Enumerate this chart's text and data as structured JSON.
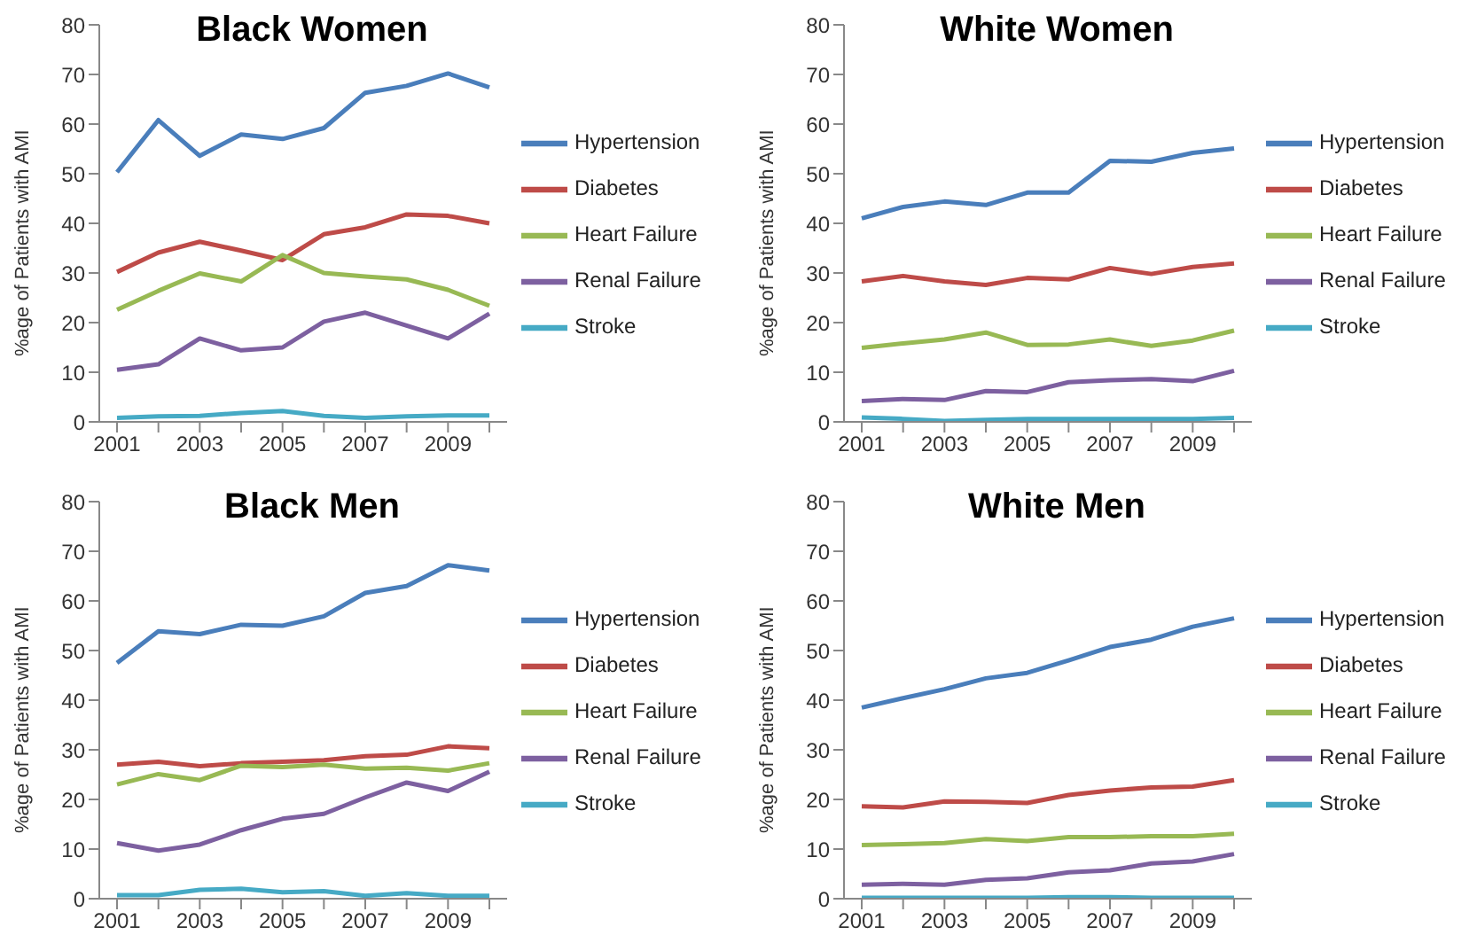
{
  "chart_data": [
    {
      "type": "line",
      "title": "Black Women",
      "ylabel": "%age of Patients with AMI",
      "categories": [
        "2001",
        null,
        "2003",
        null,
        "2005",
        null,
        "2007",
        null,
        "2009",
        null
      ],
      "ylim": [
        0,
        80
      ],
      "yticks": [
        0,
        10,
        20,
        30,
        40,
        50,
        60,
        70,
        80
      ],
      "grid": false,
      "legend": "right",
      "marker": "none",
      "line_style": "solid",
      "series": [
        {
          "name": "Hypertension",
          "color": "#4a7ebb",
          "values": [
            50.3,
            60.8,
            53.6,
            57.9,
            57.0,
            59.2,
            66.3,
            67.7,
            70.2,
            67.4
          ]
        },
        {
          "name": "Diabetes",
          "color": "#be4b48",
          "values": [
            30.2,
            34.1,
            36.3,
            34.5,
            32.6,
            37.8,
            39.2,
            41.8,
            41.5,
            40.0
          ]
        },
        {
          "name": "Heart Failure",
          "color": "#98b954",
          "values": [
            22.6,
            26.4,
            29.9,
            28.3,
            33.6,
            30.0,
            29.3,
            28.7,
            26.6,
            23.4
          ]
        },
        {
          "name": "Renal Failure",
          "color": "#7d60a0",
          "values": [
            10.5,
            11.6,
            16.8,
            14.4,
            15.0,
            20.2,
            22.0,
            19.4,
            16.8,
            21.8
          ]
        },
        {
          "name": "Stroke",
          "color": "#46aac5",
          "values": [
            0.8,
            1.1,
            1.2,
            1.8,
            2.2,
            1.2,
            0.8,
            1.1,
            1.3,
            1.3
          ]
        }
      ]
    },
    {
      "type": "line",
      "title": "White Women",
      "ylabel": "%age of Patients with AMI",
      "categories": [
        "2001",
        null,
        "2003",
        null,
        "2005",
        null,
        "2007",
        null,
        "2009",
        null
      ],
      "ylim": [
        0,
        80
      ],
      "yticks": [
        0,
        10,
        20,
        30,
        40,
        50,
        60,
        70,
        80
      ],
      "grid": false,
      "legend": "right",
      "marker": "none",
      "line_style": "solid",
      "series": [
        {
          "name": "Hypertension",
          "color": "#4a7ebb",
          "values": [
            41.0,
            43.3,
            44.4,
            43.7,
            46.2,
            46.2,
            52.6,
            52.4,
            54.2,
            55.1
          ]
        },
        {
          "name": "Diabetes",
          "color": "#be4b48",
          "values": [
            28.3,
            29.4,
            28.3,
            27.6,
            29.0,
            28.7,
            31.0,
            29.8,
            31.2,
            31.9
          ]
        },
        {
          "name": "Heart Failure",
          "color": "#98b954",
          "values": [
            14.9,
            15.8,
            16.6,
            18.0,
            15.5,
            15.6,
            16.6,
            15.3,
            16.4,
            18.4
          ]
        },
        {
          "name": "Renal Failure",
          "color": "#7d60a0",
          "values": [
            4.2,
            4.6,
            4.4,
            6.2,
            6.0,
            8.0,
            8.4,
            8.6,
            8.2,
            10.3
          ]
        },
        {
          "name": "Stroke",
          "color": "#46aac5",
          "values": [
            0.9,
            0.6,
            0.2,
            0.4,
            0.6,
            0.6,
            0.6,
            0.6,
            0.6,
            0.8
          ]
        }
      ]
    },
    {
      "type": "line",
      "title": "Black Men",
      "ylabel": "%age of Patients with AMI",
      "categories": [
        "2001",
        null,
        "2003",
        null,
        "2005",
        null,
        "2007",
        null,
        "2009",
        null
      ],
      "ylim": [
        0,
        80
      ],
      "yticks": [
        0,
        10,
        20,
        30,
        40,
        50,
        60,
        70,
        80
      ],
      "grid": false,
      "legend": "right",
      "marker": "none",
      "line_style": "solid",
      "series": [
        {
          "name": "Hypertension",
          "color": "#4a7ebb",
          "values": [
            47.5,
            53.9,
            53.3,
            55.2,
            55.0,
            56.9,
            61.6,
            63.0,
            67.2,
            66.1
          ]
        },
        {
          "name": "Diabetes",
          "color": "#be4b48",
          "values": [
            27.0,
            27.6,
            26.7,
            27.3,
            27.6,
            27.9,
            28.7,
            29.0,
            30.7,
            30.3
          ]
        },
        {
          "name": "Heart Failure",
          "color": "#98b954",
          "values": [
            23.0,
            25.1,
            23.9,
            26.8,
            26.5,
            27.0,
            26.2,
            26.4,
            25.8,
            27.3
          ]
        },
        {
          "name": "Renal Failure",
          "color": "#7d60a0",
          "values": [
            11.2,
            9.7,
            10.9,
            13.8,
            16.1,
            17.1,
            20.4,
            23.4,
            21.7,
            25.6
          ]
        },
        {
          "name": "Stroke",
          "color": "#46aac5",
          "values": [
            0.7,
            0.7,
            1.8,
            2.0,
            1.3,
            1.5,
            0.6,
            1.1,
            0.6,
            0.6
          ]
        }
      ]
    },
    {
      "type": "line",
      "title": "White Men",
      "ylabel": "%age of Patients with AMI",
      "categories": [
        "2001",
        null,
        "2003",
        null,
        "2005",
        null,
        "2007",
        null,
        "2009",
        null
      ],
      "ylim": [
        0,
        80
      ],
      "yticks": [
        0,
        10,
        20,
        30,
        40,
        50,
        60,
        70,
        80
      ],
      "grid": false,
      "legend": "right",
      "marker": "none",
      "line_style": "solid",
      "series": [
        {
          "name": "Hypertension",
          "color": "#4a7ebb",
          "values": [
            38.5,
            40.4,
            42.2,
            44.4,
            45.5,
            48.0,
            50.7,
            52.2,
            54.8,
            56.5
          ]
        },
        {
          "name": "Diabetes",
          "color": "#be4b48",
          "values": [
            18.6,
            18.4,
            19.6,
            19.5,
            19.3,
            20.9,
            21.8,
            22.4,
            22.6,
            23.9
          ]
        },
        {
          "name": "Heart Failure",
          "color": "#98b954",
          "values": [
            10.8,
            11.0,
            11.2,
            12.0,
            11.6,
            12.4,
            12.4,
            12.6,
            12.6,
            13.1
          ]
        },
        {
          "name": "Renal Failure",
          "color": "#7d60a0",
          "values": [
            2.8,
            3.0,
            2.8,
            3.8,
            4.1,
            5.3,
            5.7,
            7.1,
            7.5,
            9.0
          ]
        },
        {
          "name": "Stroke",
          "color": "#46aac5",
          "values": [
            0.2,
            0.2,
            0.2,
            0.2,
            0.2,
            0.3,
            0.3,
            0.2,
            0.2,
            0.2
          ]
        }
      ]
    }
  ]
}
